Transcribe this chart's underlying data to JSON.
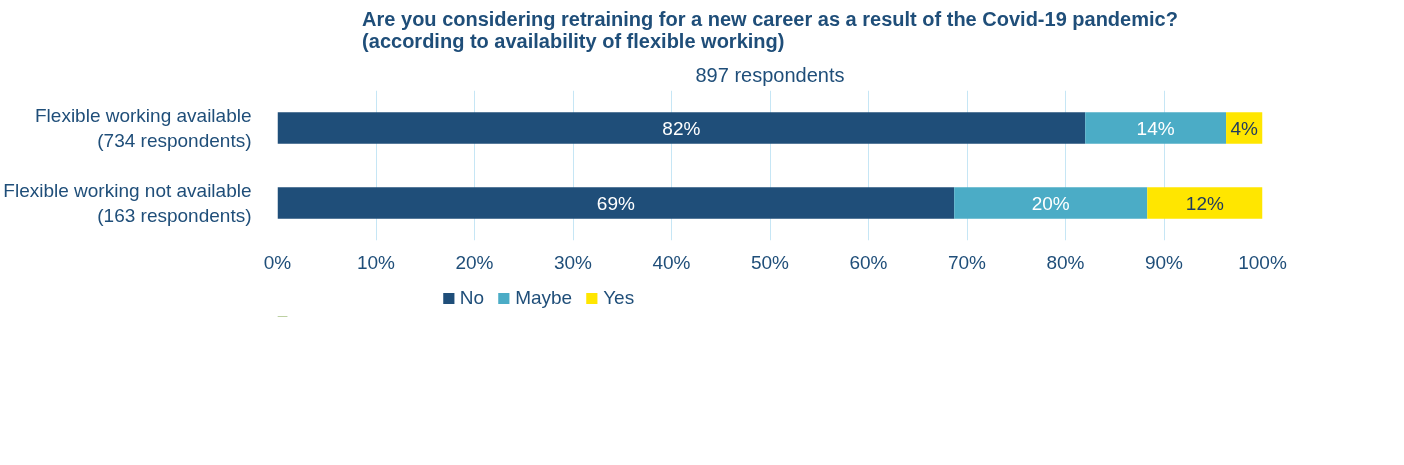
{
  "chart_data": {
    "type": "bar",
    "orientation": "horizontal",
    "stacked": true,
    "title": "Are you considering retraining for a new career as a result of the Covid-19 pandemic?\n(according to availability of flexible working)",
    "subtitle": "897 respondents",
    "categories": [
      "Flexible working available\n(734 respondents)",
      "Flexible working not available\n(163 respondents)"
    ],
    "series": [
      {
        "name": "No",
        "color": "#1f4e79",
        "values": [
          82,
          68.7
        ],
        "value_labels": [
          "82%",
          "69%"
        ]
      },
      {
        "name": "Maybe",
        "color": "#4bacc6",
        "values": [
          14.3,
          19.6
        ],
        "value_labels": [
          "14%",
          "20%"
        ]
      },
      {
        "name": "Yes",
        "color": "#ffe600",
        "values": [
          3.7,
          11.7
        ],
        "value_labels": [
          "4%",
          "12%"
        ]
      }
    ],
    "xlim": [
      0,
      100
    ],
    "xticks": [
      {
        "value": 0,
        "label": "0%"
      },
      {
        "value": 10,
        "label": "10%"
      },
      {
        "value": 20,
        "label": "20%"
      },
      {
        "value": 30,
        "label": "30%"
      },
      {
        "value": 40,
        "label": "40%"
      },
      {
        "value": 50,
        "label": "50%"
      },
      {
        "value": 60,
        "label": "60%"
      },
      {
        "value": 70,
        "label": "70%"
      },
      {
        "value": 80,
        "label": "80%"
      },
      {
        "value": 90,
        "label": "90%"
      },
      {
        "value": 100,
        "label": "100%"
      }
    ],
    "grid": "x",
    "legend": "bottom"
  }
}
